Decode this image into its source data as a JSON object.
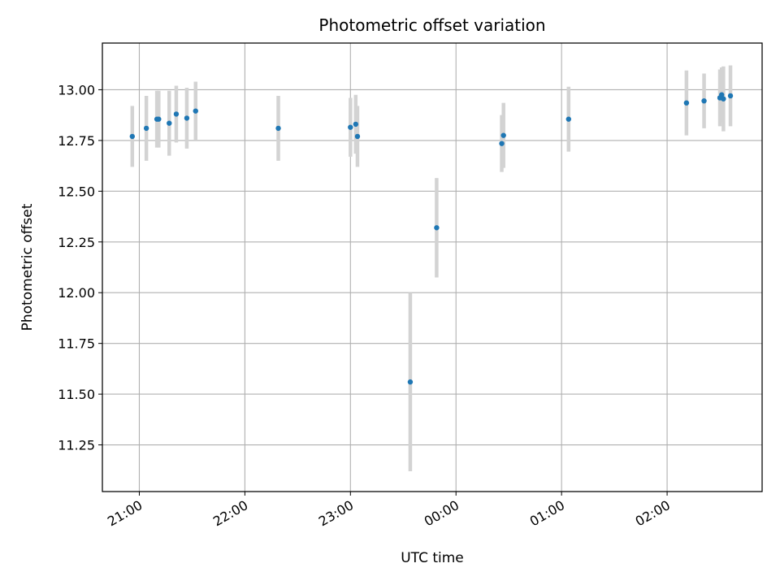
{
  "chart_data": {
    "type": "scatter",
    "title": "Photometric offset variation",
    "xlabel": "UTC time",
    "ylabel": "Photometric offset",
    "grid": true,
    "legend": "none",
    "x_axis": {
      "kind": "time",
      "range": [
        "2000-01-01T20:39:00",
        "2000-01-02T02:54:00"
      ],
      "ticks": [
        {
          "time": "2000-01-01T21:00:00",
          "label": "21:00"
        },
        {
          "time": "2000-01-01T22:00:00",
          "label": "22:00"
        },
        {
          "time": "2000-01-01T23:00:00",
          "label": "23:00"
        },
        {
          "time": "2000-01-02T00:00:00",
          "label": "00:00"
        },
        {
          "time": "2000-01-02T01:00:00",
          "label": "01:00"
        },
        {
          "time": "2000-01-02T02:00:00",
          "label": "02:00"
        }
      ]
    },
    "y_axis": {
      "range": [
        11.02,
        13.23
      ],
      "ticks": [
        {
          "value": 11.25,
          "label": "11.25"
        },
        {
          "value": 11.5,
          "label": "11.50"
        },
        {
          "value": 11.75,
          "label": "11.75"
        },
        {
          "value": 12.0,
          "label": "12.00"
        },
        {
          "value": 12.25,
          "label": "12.25"
        },
        {
          "value": 12.5,
          "label": "12.50"
        },
        {
          "value": 12.75,
          "label": "12.75"
        },
        {
          "value": 13.0,
          "label": "13.00"
        }
      ]
    },
    "colors": {
      "marker": "#1f77b4",
      "errorbar": "#d3d3d3",
      "grid": "#b0b0b0"
    },
    "points": [
      {
        "x": "2000-01-01T20:56:00",
        "y": 12.77,
        "err": 0.15
      },
      {
        "x": "2000-01-01T21:04:00",
        "y": 12.81,
        "err": 0.16
      },
      {
        "x": "2000-01-01T21:10:00",
        "y": 12.855,
        "err": 0.14
      },
      {
        "x": "2000-01-01T21:11:00",
        "y": 12.855,
        "err": 0.14
      },
      {
        "x": "2000-01-01T21:17:00",
        "y": 12.835,
        "err": 0.16
      },
      {
        "x": "2000-01-01T21:21:00",
        "y": 12.88,
        "err": 0.14
      },
      {
        "x": "2000-01-01T21:27:00",
        "y": 12.86,
        "err": 0.15
      },
      {
        "x": "2000-01-01T21:32:00",
        "y": 12.895,
        "err": 0.145
      },
      {
        "x": "2000-01-01T22:19:00",
        "y": 12.81,
        "err": 0.16
      },
      {
        "x": "2000-01-01T23:00:00",
        "y": 12.815,
        "err": 0.145
      },
      {
        "x": "2000-01-01T23:03:00",
        "y": 12.83,
        "err": 0.145
      },
      {
        "x": "2000-01-01T23:04:00",
        "y": 12.77,
        "err": 0.15
      },
      {
        "x": "2000-01-01T23:34:00",
        "y": 11.56,
        "err": 0.44
      },
      {
        "x": "2000-01-01T23:49:00",
        "y": 12.32,
        "err": 0.245
      },
      {
        "x": "2000-01-02T00:26:00",
        "y": 12.735,
        "err": 0.14
      },
      {
        "x": "2000-01-02T00:27:00",
        "y": 12.775,
        "err": 0.16
      },
      {
        "x": "2000-01-02T01:04:00",
        "y": 12.855,
        "err": 0.16
      },
      {
        "x": "2000-01-02T02:11:00",
        "y": 12.935,
        "err": 0.16
      },
      {
        "x": "2000-01-02T02:21:00",
        "y": 12.945,
        "err": 0.135
      },
      {
        "x": "2000-01-02T02:30:00",
        "y": 12.96,
        "err": 0.14
      },
      {
        "x": "2000-01-02T02:31:00",
        "y": 12.975,
        "err": 0.135
      },
      {
        "x": "2000-01-02T02:32:00",
        "y": 12.955,
        "err": 0.16
      },
      {
        "x": "2000-01-02T02:36:00",
        "y": 12.97,
        "err": 0.15
      }
    ]
  }
}
